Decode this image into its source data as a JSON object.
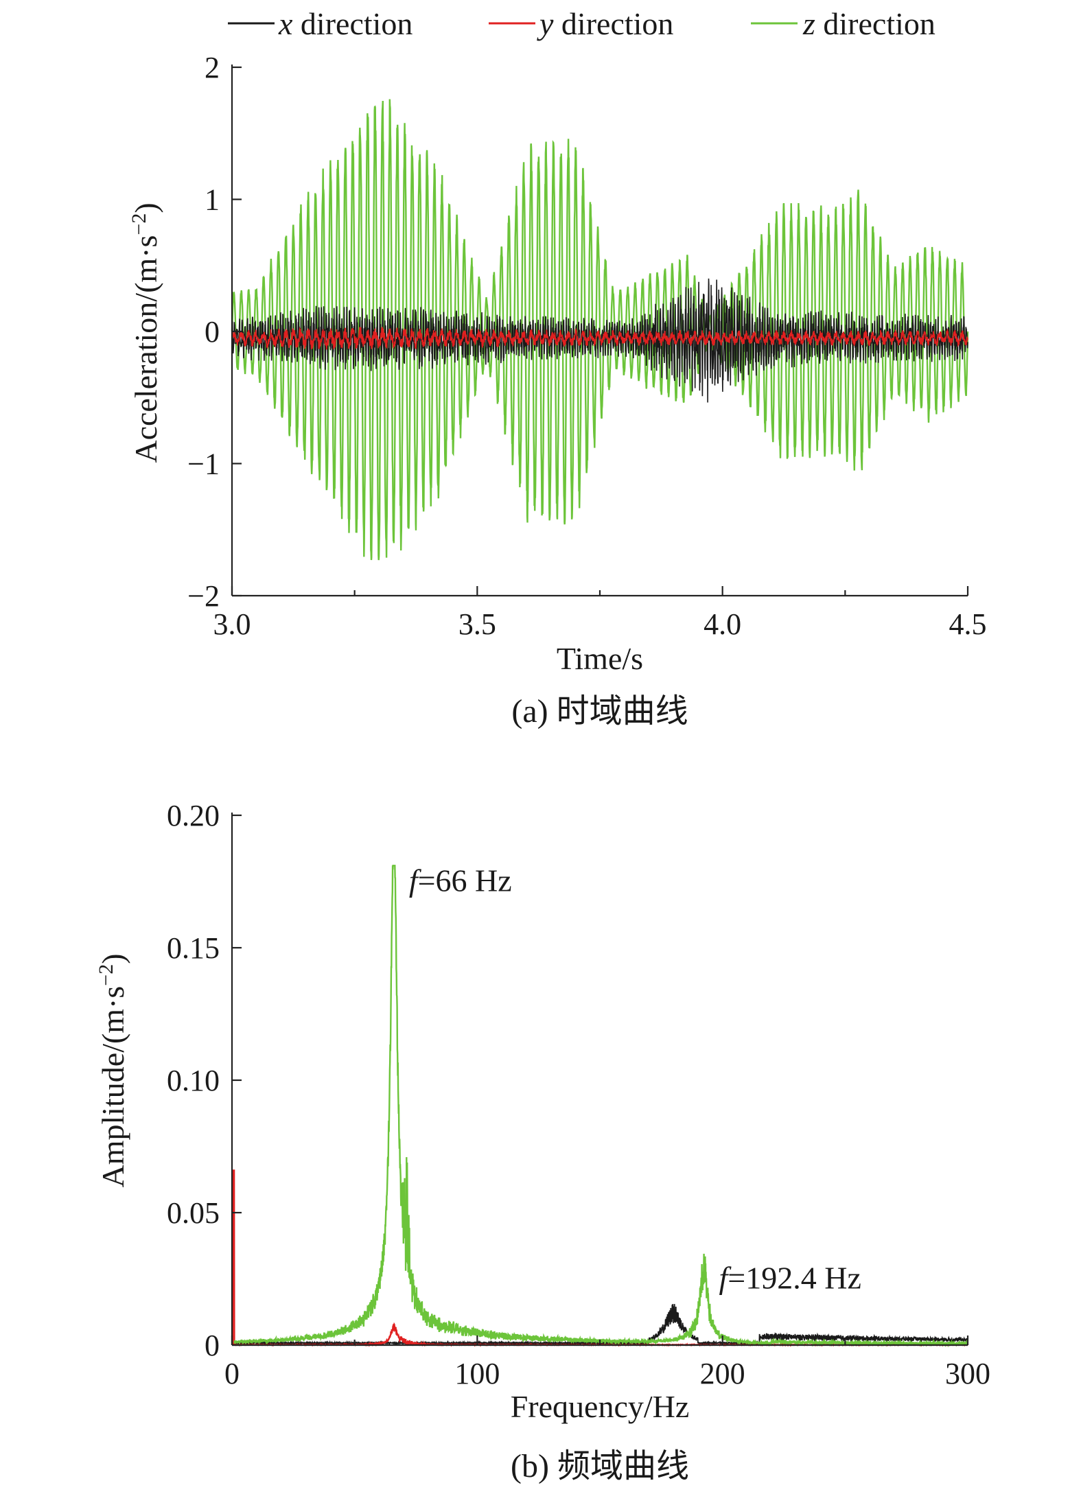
{
  "colors": {
    "x": "#1a1a1a",
    "y": "#e02020",
    "z": "#6cc43a",
    "axis": "#222222"
  },
  "legend": [
    {
      "var": "x",
      "text": " direction",
      "series": "x"
    },
    {
      "var": "y",
      "text": " direction",
      "series": "y"
    },
    {
      "var": "z",
      "text": " direction",
      "series": "z"
    }
  ],
  "chart_data": [
    {
      "id": "time",
      "type": "line",
      "caption": "(a) 时域曲线",
      "xlabel": "Time/s",
      "ylabel": "Acceleration/(m·s",
      "ylabel_sup": "−2",
      "ylabel_end": ")",
      "xlim": [
        3.0,
        4.5
      ],
      "ylim": [
        -2,
        2
      ],
      "xticks": [
        {
          "v": 3.0,
          "label": "3.0"
        },
        {
          "v": 3.5,
          "label": "3.5"
        },
        {
          "v": 4.0,
          "label": "4.0"
        },
        {
          "v": 4.5,
          "label": "4.5"
        }
      ],
      "xminor": [
        3.25,
        3.75,
        4.25
      ],
      "yticks": [
        {
          "v": 2,
          "label": "2"
        },
        {
          "v": 1,
          "label": "1"
        },
        {
          "v": 0,
          "label": "0"
        },
        {
          "v": -1,
          "label": "−1"
        },
        {
          "v": -2,
          "label": "−2"
        }
      ],
      "series": [
        {
          "name": "x direction",
          "color_key": "x",
          "offset": -0.05,
          "freq_hz": 192.4,
          "envelope": [
            [
              3.0,
              0.13
            ],
            [
              3.2,
              0.22
            ],
            [
              3.4,
              0.2
            ],
            [
              3.6,
              0.15
            ],
            [
              3.8,
              0.12
            ],
            [
              3.97,
              0.42
            ],
            [
              4.1,
              0.2
            ],
            [
              4.3,
              0.16
            ],
            [
              4.5,
              0.15
            ]
          ]
        },
        {
          "name": "y direction",
          "color_key": "y",
          "offset": -0.05,
          "freq_hz": 66,
          "envelope": [
            [
              3.0,
              0.05
            ],
            [
              3.2,
              0.08
            ],
            [
              3.5,
              0.06
            ],
            [
              3.8,
              0.05
            ],
            [
              4.2,
              0.05
            ],
            [
              4.5,
              0.05
            ]
          ]
        },
        {
          "name": "z direction",
          "color_key": "z",
          "offset": 0.0,
          "freq_hz": 66,
          "envelope": [
            [
              3.0,
              0.3
            ],
            [
              3.05,
              0.35
            ],
            [
              3.15,
              1.05
            ],
            [
              3.3,
              1.9
            ],
            [
              3.42,
              1.3
            ],
            [
              3.52,
              0.25
            ],
            [
              3.6,
              1.45
            ],
            [
              3.7,
              1.5
            ],
            [
              3.78,
              0.3
            ],
            [
              3.85,
              0.45
            ],
            [
              3.93,
              0.6
            ],
            [
              3.97,
              0.1
            ],
            [
              4.05,
              0.55
            ],
            [
              4.12,
              1.0
            ],
            [
              4.22,
              0.95
            ],
            [
              4.28,
              1.1
            ],
            [
              4.35,
              0.5
            ],
            [
              4.42,
              0.7
            ],
            [
              4.5,
              0.5
            ]
          ]
        }
      ]
    },
    {
      "id": "freq",
      "type": "line",
      "caption": "(b) 频域曲线",
      "xlabel": "Frequency/Hz",
      "ylabel": "Amplitude/(m·s",
      "ylabel_sup": "−2",
      "ylabel_end": ")",
      "xlim": [
        0,
        300
      ],
      "ylim": [
        0,
        0.2
      ],
      "xticks": [
        {
          "v": 0,
          "label": "0"
        },
        {
          "v": 100,
          "label": "100"
        },
        {
          "v": 200,
          "label": "200"
        },
        {
          "v": 300,
          "label": "300"
        }
      ],
      "xminor": [
        50,
        150,
        250
      ],
      "yticks": [
        {
          "v": 0.2,
          "label": "0.20"
        },
        {
          "v": 0.15,
          "label": "0.15"
        },
        {
          "v": 0.1,
          "label": "0.10"
        },
        {
          "v": 0.05,
          "label": "0.05"
        },
        {
          "v": 0,
          "label": "0"
        }
      ],
      "annotations": [
        {
          "f": "f",
          "text": "=66 Hz",
          "x": 66,
          "y": 0.175
        },
        {
          "f": "f",
          "text": "=192.4 Hz",
          "x": 192.4,
          "y": 0.025
        }
      ],
      "peaks": [
        {
          "series": "z",
          "x": 66,
          "y": 0.181
        },
        {
          "series": "z",
          "x": 192.4,
          "y": 0.031
        },
        {
          "series": "x",
          "x": 180,
          "y": 0.015
        },
        {
          "series": "y",
          "x": 0,
          "y": 0.066
        },
        {
          "series": "y",
          "x": 66,
          "y": 0.008
        }
      ]
    }
  ]
}
